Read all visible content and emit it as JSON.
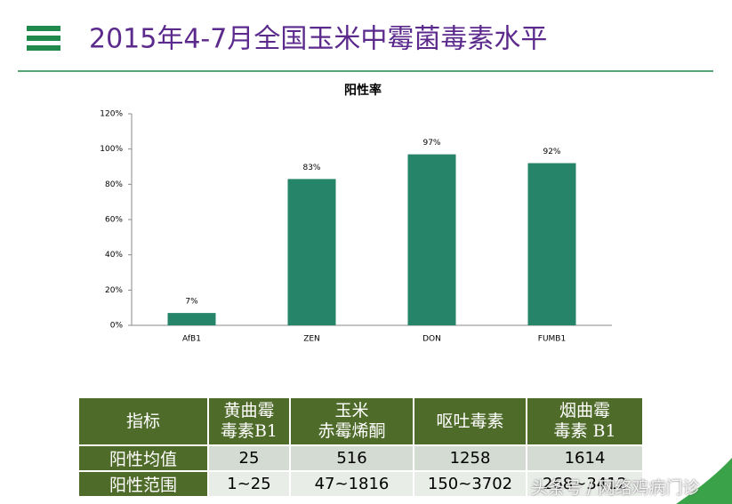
{
  "header": {
    "title": "2015年4-7月全国玉米中霉菌毒素水平"
  },
  "chart_data": {
    "type": "bar",
    "title": "阳性率",
    "categories": [
      "AfB1",
      "ZEN",
      "DON",
      "FUMB1"
    ],
    "values": [
      7,
      83,
      97,
      92
    ],
    "value_labels": [
      "7%",
      "83%",
      "97%",
      "92%"
    ],
    "color": "#268468",
    "ylim": [
      0,
      120
    ],
    "yticks": [
      {
        "value": 0,
        "label": "0%"
      },
      {
        "value": 20,
        "label": "20%"
      },
      {
        "value": 40,
        "label": "40%"
      },
      {
        "value": 60,
        "label": "60%"
      },
      {
        "value": 80,
        "label": "80%"
      },
      {
        "value": 100,
        "label": "100%"
      },
      {
        "value": 120,
        "label": "120%"
      }
    ],
    "grid": false
  },
  "table": {
    "header": [
      "指标",
      "黄曲霉\n毒素B1",
      "玉米\n赤霉烯酮",
      "呕吐毒素",
      "烟曲霉\n毒素 B1"
    ],
    "rows": [
      [
        "阳性均值",
        "25",
        "516",
        "1258",
        "1614"
      ],
      [
        "阳性范围",
        "1~25",
        "47~1816",
        "150~3702",
        "268~3412"
      ]
    ]
  },
  "watermark": "头条号 / 网络鸡病门诊"
}
